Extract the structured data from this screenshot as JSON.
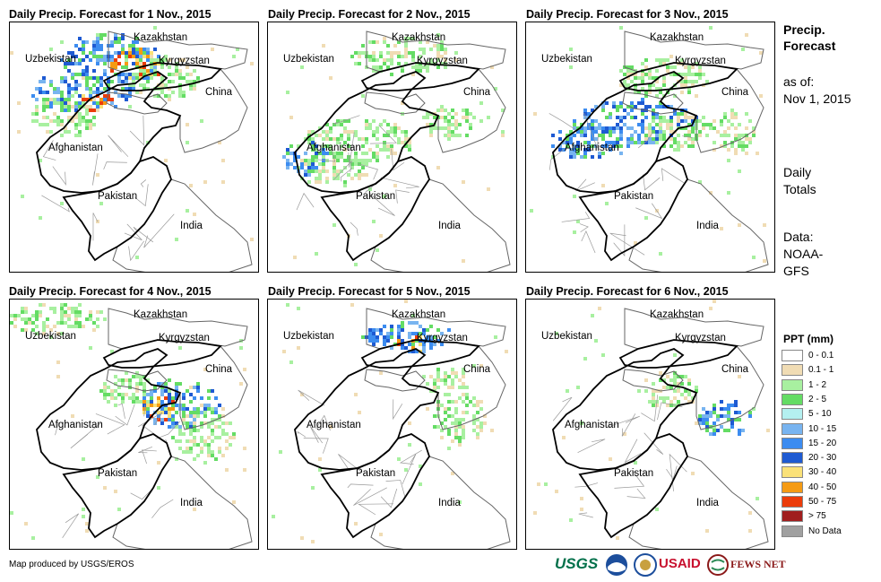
{
  "panels": [
    {
      "title": "Daily Precip. Forecast for 1 Nov., 2015",
      "day": 1
    },
    {
      "title": "Daily Precip. Forecast for 2 Nov., 2015",
      "day": 2
    },
    {
      "title": "Daily Precip. Forecast for 3 Nov., 2015",
      "day": 3
    },
    {
      "title": "Daily Precip. Forecast for 4 Nov., 2015",
      "day": 4
    },
    {
      "title": "Daily Precip. Forecast for 5 Nov., 2015",
      "day": 5
    },
    {
      "title": "Daily Precip. Forecast for 6 Nov., 2015",
      "day": 6
    }
  ],
  "country_labels": {
    "kazakhstan": "Kazakhstan",
    "uzbekistan": "Uzbekistan",
    "kyrgyzstan": "Kyrgyzstan",
    "china": "China",
    "afghanistan": "Afghanistan",
    "pakistan": "Pakistan",
    "india": "India"
  },
  "sidebar": {
    "title_line1": "Precip.",
    "title_line2": "Forecast",
    "asof_line1": "as of:",
    "asof_line2": "Nov 1, 2015",
    "totals_line1": "Daily",
    "totals_line2": "Totals",
    "data_line1": "Data:",
    "data_line2": "NOAA-",
    "data_line3": "GFS"
  },
  "legend": {
    "title": "PPT (mm)",
    "items": [
      {
        "label": "0 - 0.1",
        "color": "#ffffff"
      },
      {
        "label": "0.1 - 1",
        "color": "#f0dcb4"
      },
      {
        "label": "1 - 2",
        "color": "#a8f0a0"
      },
      {
        "label": "2 - 5",
        "color": "#64dc64"
      },
      {
        "label": "5 - 10",
        "color": "#b4f0f0"
      },
      {
        "label": "10 - 15",
        "color": "#78b4f0"
      },
      {
        "label": "15 - 20",
        "color": "#3c8cf0"
      },
      {
        "label": "20 - 30",
        "color": "#1e5ad2"
      },
      {
        "label": "30 - 40",
        "color": "#fae178"
      },
      {
        "label": "40 - 50",
        "color": "#f59b14"
      },
      {
        "label": "50 - 75",
        "color": "#eb3c0a"
      },
      {
        "label": "> 75",
        "color": "#a01e1e"
      },
      {
        "label": "No Data",
        "color": "#a0a0a0"
      }
    ]
  },
  "footer": {
    "credit": "Map produced by USGS/EROS"
  },
  "logos": {
    "usgs": "USGS",
    "usaid": "USAID",
    "fewsnet": "FEWS NET"
  }
}
